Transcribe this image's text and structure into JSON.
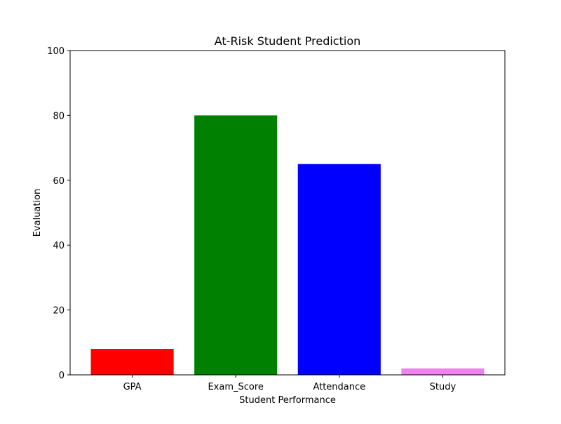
{
  "chart_data": {
    "type": "bar",
    "title": "At-Risk Student Prediction",
    "xlabel": "Student Performance",
    "ylabel": "Evaluation",
    "categories": [
      "GPA",
      "Exam_Score",
      "Attendance",
      "Study"
    ],
    "values": [
      8,
      80,
      65,
      2
    ],
    "colors": [
      "#ff0000",
      "#008000",
      "#0000ff",
      "#ee82ee"
    ],
    "ylim": [
      0,
      100
    ],
    "yticks": [
      0,
      20,
      40,
      60,
      80,
      100
    ],
    "grid": false,
    "legend": "none"
  }
}
